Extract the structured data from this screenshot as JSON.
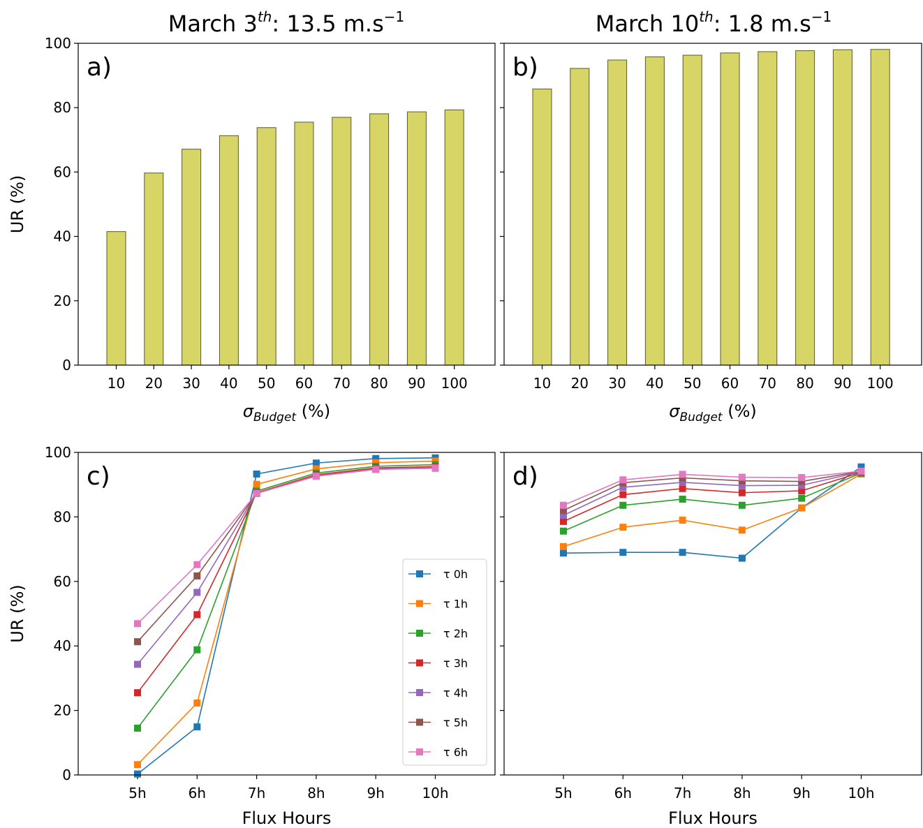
{
  "titles": {
    "a": {
      "main": "March 3",
      "sup": "th",
      "rest": ": 13.5 m.s",
      "unit_sup": "−1"
    },
    "b": {
      "main": "March 10",
      "sup": "th",
      "rest": ": 1.8 m.s",
      "unit_sup": "−1"
    }
  },
  "colors": {
    "bar_fill": "#d6d566",
    "bar_edge": "#5a5a2a",
    "tau0": "#1f77b4",
    "tau1": "#ff7f0e",
    "tau2": "#2ca02c",
    "tau3": "#d62728",
    "tau4": "#9467bd",
    "tau5": "#8c564b",
    "tau6": "#e377c2"
  },
  "chart_data": [
    {
      "panel": "a",
      "type": "bar",
      "panel_label": "a)",
      "title": "March 3th: 13.5 m.s−1",
      "xlabel_sym": "σ",
      "xlabel_sub": "Budget",
      "xlabel_rest": " (%)",
      "ylabel": "UR (%)",
      "categories": [
        "10",
        "20",
        "30",
        "40",
        "50",
        "60",
        "70",
        "80",
        "90",
        "100"
      ],
      "values": [
        41.5,
        59.7,
        67.1,
        71.3,
        73.8,
        75.5,
        77.0,
        78.1,
        78.7,
        79.3
      ],
      "ylim": [
        0,
        100
      ],
      "yticks": [
        "0",
        "20",
        "40",
        "60",
        "80",
        "100"
      ],
      "grid": false
    },
    {
      "panel": "b",
      "type": "bar",
      "panel_label": "b)",
      "title": "March 10th: 1.8 m.s−1",
      "xlabel_sym": "σ",
      "xlabel_sub": "Budget",
      "xlabel_rest": " (%)",
      "ylabel": "",
      "categories": [
        "10",
        "20",
        "30",
        "40",
        "50",
        "60",
        "70",
        "80",
        "90",
        "100"
      ],
      "values": [
        85.8,
        92.2,
        94.8,
        95.8,
        96.3,
        97.0,
        97.4,
        97.7,
        98.0,
        98.1
      ],
      "ylim": [
        0,
        100
      ],
      "yticks": [],
      "grid": false
    },
    {
      "panel": "c",
      "type": "line",
      "panel_label": "c)",
      "xlabel": "Flux Hours",
      "ylabel": "UR (%)",
      "x": [
        "5h",
        "6h",
        "7h",
        "8h",
        "9h",
        "10h"
      ],
      "ylim": [
        0,
        100
      ],
      "yticks": [
        "0",
        "20",
        "40",
        "60",
        "80",
        "100"
      ],
      "legend": "inside right",
      "series": [
        {
          "name": "τ 0h",
          "color": "tau0",
          "values": [
            0.3,
            14.9,
            93.3,
            96.7,
            98.1,
            98.3
          ]
        },
        {
          "name": "τ 1h",
          "color": "tau1",
          "values": [
            3.2,
            22.3,
            90.1,
            94.9,
            96.8,
            97.3
          ]
        },
        {
          "name": "τ 2h",
          "color": "tau2",
          "values": [
            14.5,
            38.8,
            88.0,
            93.6,
            95.7,
            96.2
          ]
        },
        {
          "name": "τ 3h",
          "color": "tau3",
          "values": [
            25.5,
            49.7,
            87.5,
            93.1,
            95.2,
            95.6
          ]
        },
        {
          "name": "τ 4h",
          "color": "tau4",
          "values": [
            34.3,
            56.6,
            87.3,
            92.8,
            94.9,
            95.3
          ]
        },
        {
          "name": "τ 5h",
          "color": "tau5",
          "values": [
            41.3,
            61.7,
            87.3,
            92.7,
            94.8,
            95.1
          ]
        },
        {
          "name": "τ 6h",
          "color": "tau6",
          "values": [
            46.9,
            65.2,
            87.3,
            92.6,
            94.7,
            95.1
          ]
        }
      ]
    },
    {
      "panel": "d",
      "type": "line",
      "panel_label": "d)",
      "xlabel": "Flux Hours",
      "ylabel": "",
      "x": [
        "5h",
        "6h",
        "7h",
        "8h",
        "9h",
        "10h"
      ],
      "ylim": [
        0,
        100
      ],
      "yticks": [],
      "series": [
        {
          "name": "τ 0h",
          "color": "tau0",
          "values": [
            68.8,
            69.0,
            69.0,
            67.2,
            82.8,
            95.5
          ]
        },
        {
          "name": "τ 1h",
          "color": "tau1",
          "values": [
            70.8,
            76.8,
            79.0,
            75.9,
            82.8,
            93.3
          ]
        },
        {
          "name": "τ 2h",
          "color": "tau2",
          "values": [
            75.6,
            83.6,
            85.5,
            83.6,
            85.8,
            93.6
          ]
        },
        {
          "name": "τ 3h",
          "color": "tau3",
          "values": [
            78.6,
            86.9,
            88.8,
            87.5,
            88.1,
            93.8
          ]
        },
        {
          "name": "τ 4h",
          "color": "tau4",
          "values": [
            80.5,
            89.2,
            90.7,
            89.7,
            89.8,
            94.0
          ]
        },
        {
          "name": "τ 5h",
          "color": "tau5",
          "values": [
            82.0,
            90.6,
            92.1,
            91.2,
            91.0,
            94.1
          ]
        },
        {
          "name": "τ 6h",
          "color": "tau6",
          "values": [
            83.6,
            91.5,
            93.2,
            92.3,
            92.2,
            94.2
          ]
        }
      ]
    }
  ]
}
